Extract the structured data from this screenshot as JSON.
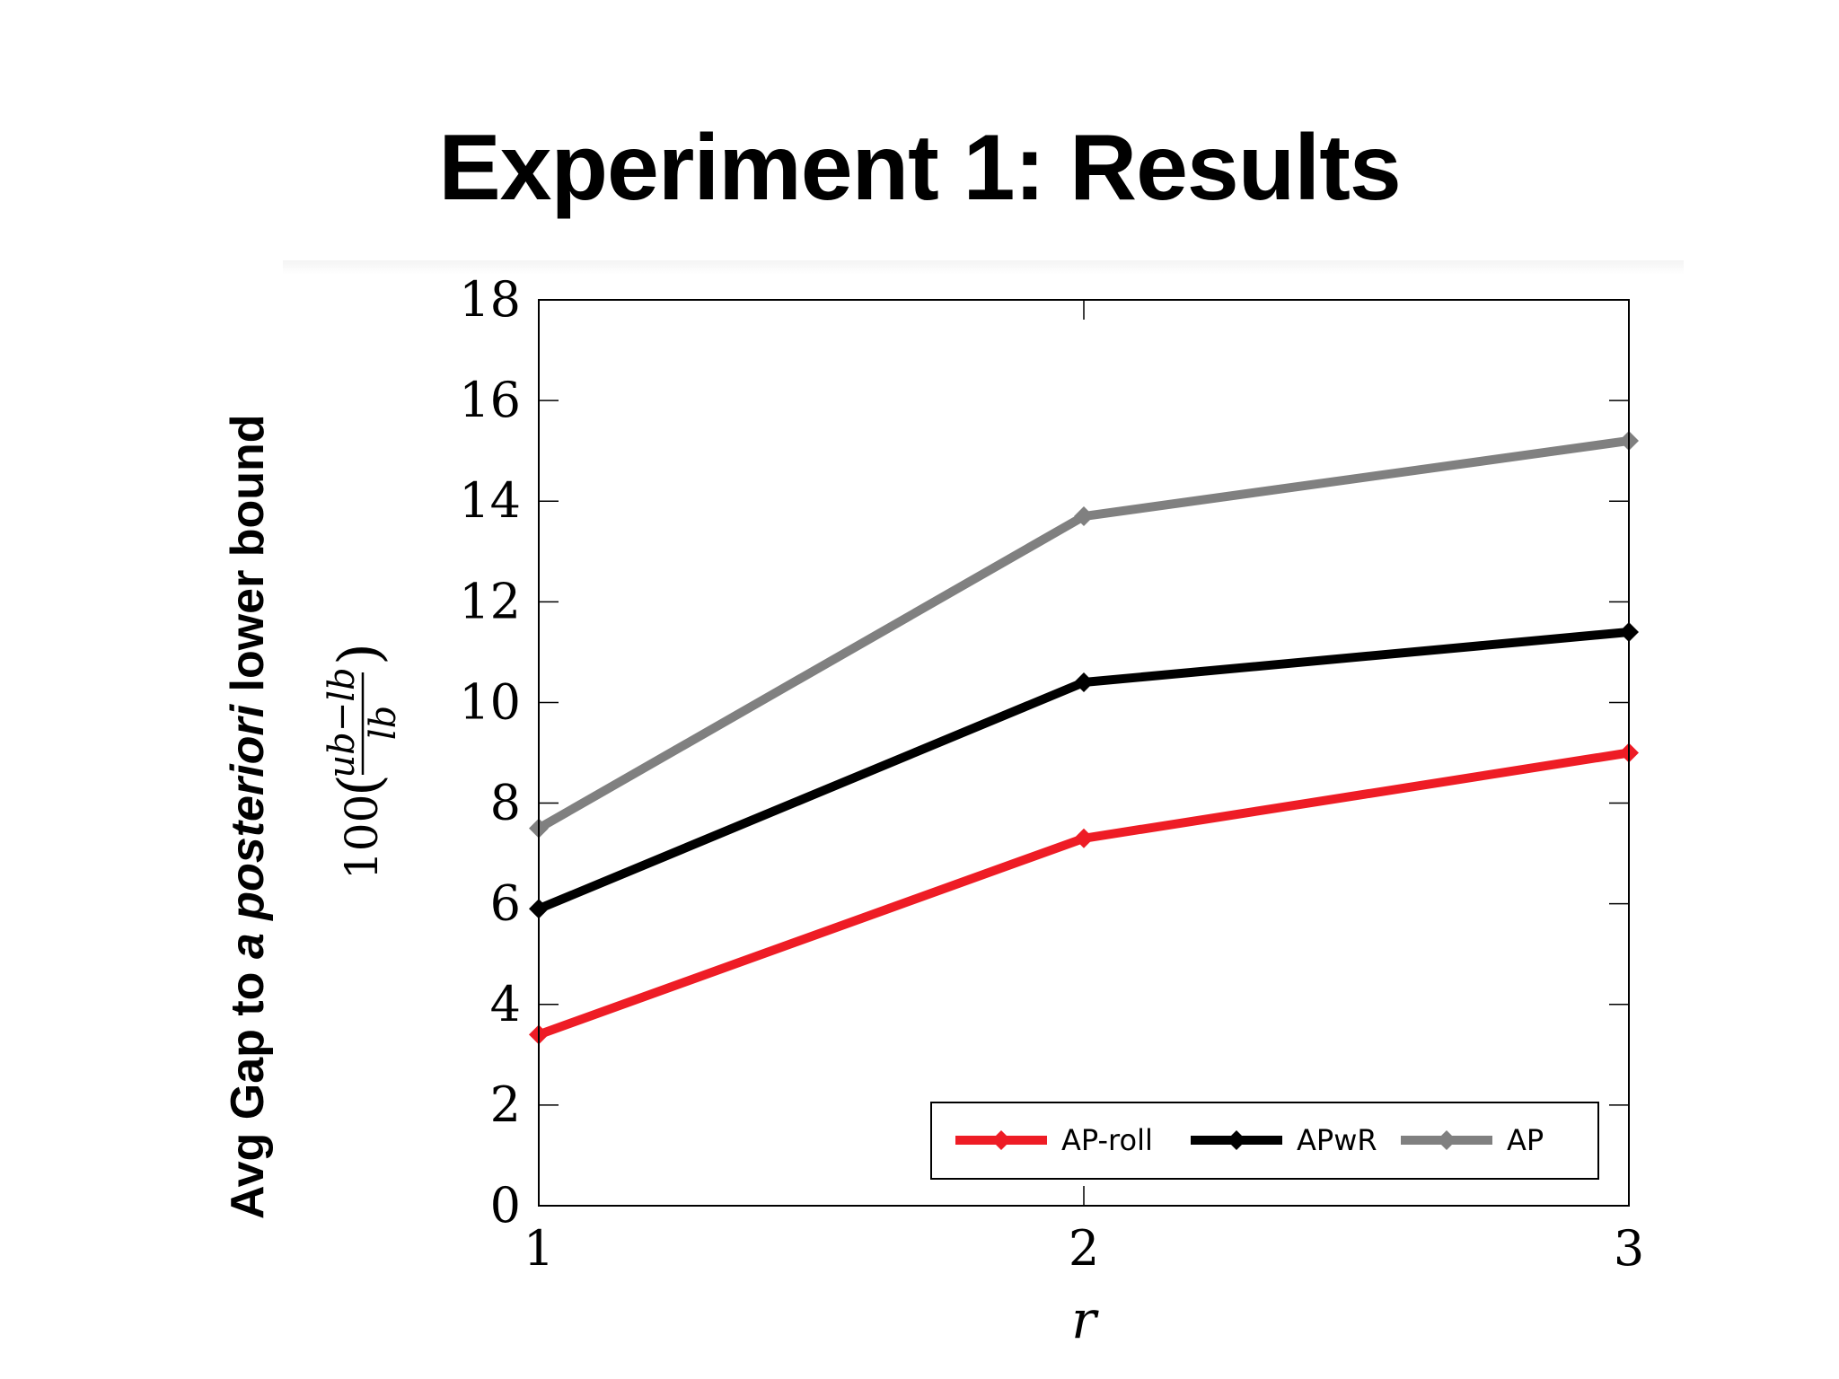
{
  "slide": {
    "title": "Experiment 1: Results",
    "ylabel_outer": {
      "prefix": "Avg Gap to ",
      "emphasis": "a posteriori",
      "suffix": " lower bound"
    }
  },
  "chart_data": {
    "type": "line",
    "x": [
      1,
      2,
      3
    ],
    "xlabel": "r",
    "ylabel": "100(ub−lb / lb)",
    "ylabel_parts": {
      "coef": "100",
      "numerator": "ub−lb",
      "denominator": "lb"
    },
    "xlim": [
      1,
      3
    ],
    "ylim": [
      0,
      18
    ],
    "xticks": [
      1,
      2,
      3
    ],
    "yticks": [
      0,
      2,
      4,
      6,
      8,
      10,
      12,
      14,
      16,
      18
    ],
    "grid": false,
    "legend_position": "bottom-right",
    "series": [
      {
        "name": "AP-roll",
        "values": [
          3.4,
          7.3,
          9.0
        ],
        "color": "#ee1c25"
      },
      {
        "name": "APwR",
        "values": [
          5.9,
          10.4,
          11.4
        ],
        "color": "#000000"
      },
      {
        "name": "AP",
        "values": [
          7.5,
          13.7,
          15.2
        ],
        "color": "#808080"
      }
    ]
  }
}
